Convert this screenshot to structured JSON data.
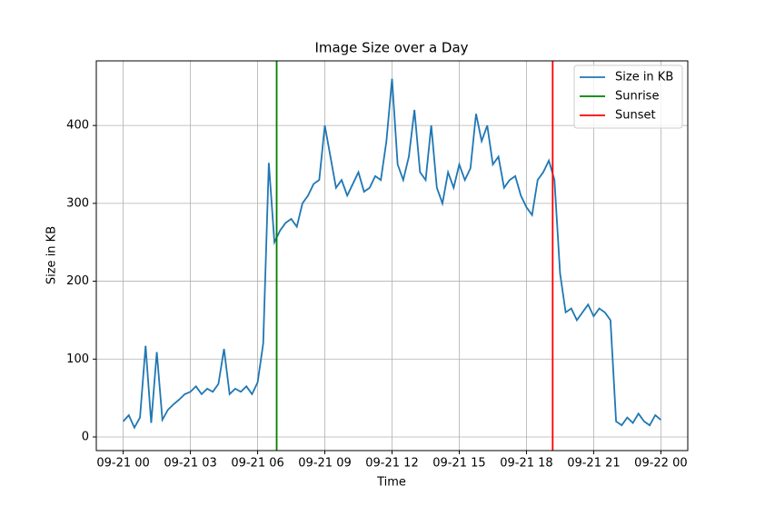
{
  "chart_data": {
    "type": "line",
    "title": "Image Size over a Day",
    "x_label": "Time",
    "y_label": "Size in KB",
    "x": [
      0,
      0.25,
      0.5,
      0.75,
      1,
      1.25,
      1.5,
      1.75,
      2,
      2.25,
      2.5,
      2.75,
      3,
      3.25,
      3.5,
      3.75,
      4,
      4.25,
      4.5,
      4.75,
      5,
      5.25,
      5.5,
      5.75,
      6,
      6.25,
      6.5,
      6.75,
      7,
      7.25,
      7.5,
      7.75,
      8,
      8.25,
      8.5,
      8.75,
      9,
      9.25,
      9.5,
      9.75,
      10,
      10.25,
      10.5,
      10.75,
      11,
      11.25,
      11.5,
      11.75,
      12,
      12.25,
      12.5,
      12.75,
      13,
      13.25,
      13.5,
      13.75,
      14,
      14.25,
      14.5,
      14.75,
      15,
      15.25,
      15.5,
      15.75,
      16,
      16.25,
      16.5,
      16.75,
      17,
      17.25,
      17.5,
      17.75,
      18,
      18.25,
      18.5,
      18.75,
      19,
      19.25,
      19.5,
      19.75,
      20,
      20.25,
      20.5,
      20.75,
      21,
      21.25,
      21.5,
      21.75,
      22,
      22.25,
      22.5,
      22.75,
      23,
      23.25,
      23.5,
      23.75,
      24
    ],
    "series": [
      {
        "name": "Size in KB",
        "color": "#1f77b4",
        "values": [
          20,
          28,
          12,
          25,
          117,
          18,
          109,
          22,
          35,
          42,
          48,
          55,
          58,
          65,
          55,
          62,
          58,
          68,
          113,
          55,
          62,
          58,
          65,
          55,
          70,
          120,
          352,
          250,
          265,
          275,
          280,
          270,
          300,
          310,
          325,
          330,
          400,
          360,
          320,
          330,
          310,
          325,
          340,
          315,
          320,
          335,
          330,
          380,
          460,
          350,
          330,
          360,
          420,
          340,
          330,
          400,
          320,
          300,
          340,
          320,
          350,
          330,
          345,
          415,
          380,
          400,
          350,
          360,
          320,
          330,
          335,
          310,
          295,
          285,
          330,
          340,
          355,
          330,
          210,
          160,
          165,
          150,
          160,
          170,
          155,
          165,
          160,
          150,
          20,
          15,
          25,
          18,
          30,
          20,
          15,
          28,
          22
        ]
      }
    ],
    "vlines": [
      {
        "name": "Sunrise",
        "color": "#008000",
        "x": 6.85
      },
      {
        "name": "Sunset",
        "color": "#ff0000",
        "x": 19.17
      }
    ],
    "xlim": [
      -1.2,
      25.2
    ],
    "ylim": [
      -17.5,
      483
    ],
    "xticks": [
      {
        "value": 0,
        "label": "09-21 00"
      },
      {
        "value": 3,
        "label": "09-21 03"
      },
      {
        "value": 6,
        "label": "09-21 06"
      },
      {
        "value": 9,
        "label": "09-21 09"
      },
      {
        "value": 12,
        "label": "09-21 12"
      },
      {
        "value": 15,
        "label": "09-21 15"
      },
      {
        "value": 18,
        "label": "09-21 18"
      },
      {
        "value": 21,
        "label": "09-21 21"
      },
      {
        "value": 24,
        "label": "09-22 00"
      }
    ],
    "yticks": [
      0,
      100,
      200,
      300,
      400
    ],
    "grid": true,
    "legend": "upper right"
  }
}
